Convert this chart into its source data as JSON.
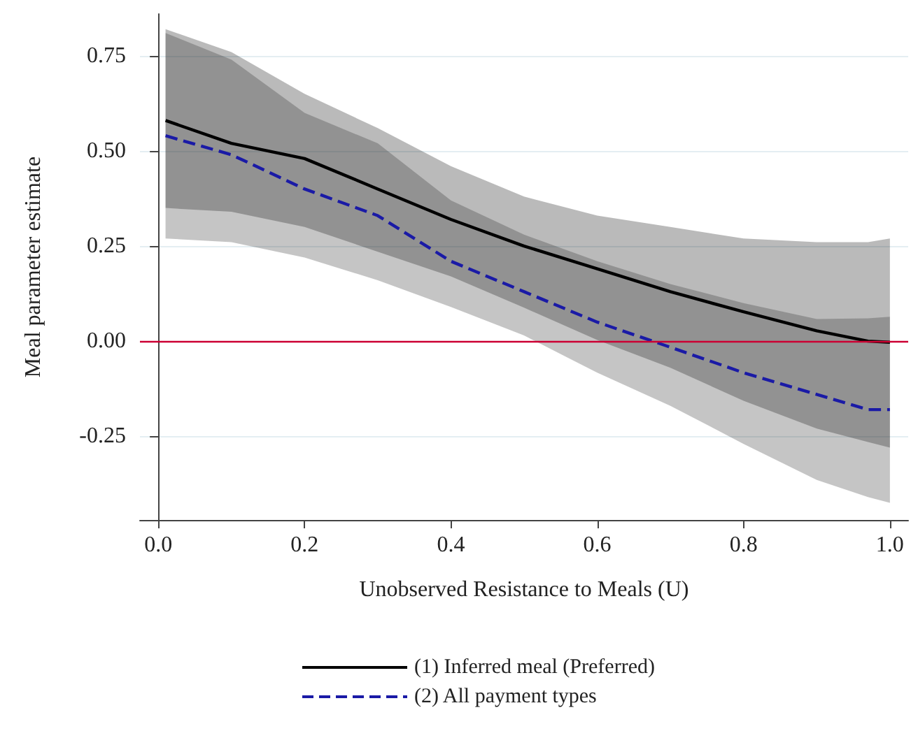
{
  "chart_data": {
    "type": "line",
    "xlabel": "Unobserved Resistance to Meals (U)",
    "ylabel": "Meal parameter estimate",
    "x": [
      0.01,
      0.1,
      0.2,
      0.3,
      0.4,
      0.5,
      0.6,
      0.7,
      0.8,
      0.9,
      0.97,
      1.0
    ],
    "series": [
      {
        "name": "(1) Inferred meal (Preferred)",
        "color": "#000000",
        "line_style": "solid",
        "values": [
          0.58,
          0.52,
          0.48,
          0.4,
          0.32,
          0.25,
          0.19,
          0.13,
          0.077,
          0.027,
          0.0,
          -0.003
        ],
        "lower": [
          0.35,
          0.34,
          0.3,
          0.235,
          0.17,
          0.088,
          0.003,
          -0.07,
          -0.157,
          -0.23,
          -0.265,
          -0.28
        ],
        "upper": [
          0.82,
          0.76,
          0.65,
          0.56,
          0.46,
          0.38,
          0.33,
          0.3,
          0.27,
          0.26,
          0.26,
          0.27
        ]
      },
      {
        "name": "(2) All payment types",
        "color": "#1a1aa6",
        "line_style": "dashed",
        "values": [
          0.54,
          0.49,
          0.4,
          0.33,
          0.21,
          0.13,
          0.05,
          -0.016,
          -0.083,
          -0.14,
          -0.18,
          -0.18
        ],
        "lower": [
          0.27,
          0.26,
          0.22,
          0.16,
          0.09,
          0.015,
          -0.083,
          -0.17,
          -0.27,
          -0.365,
          -0.41,
          -0.425
        ],
        "upper": [
          0.81,
          0.74,
          0.6,
          0.52,
          0.37,
          0.28,
          0.21,
          0.15,
          0.1,
          0.058,
          0.06,
          0.064
        ]
      }
    ],
    "xlim": [
      -0.025,
      1.025
    ],
    "xticks": [
      {
        "value": 0,
        "label": "0.0"
      },
      {
        "value": 0.2,
        "label": "0.2"
      },
      {
        "value": 0.4,
        "label": "0.4"
      },
      {
        "value": 0.6,
        "label": "0.6"
      },
      {
        "value": 0.8,
        "label": "0.8"
      },
      {
        "value": 1,
        "label": "1.0"
      }
    ],
    "ylim": [
      -0.47,
      0.86
    ],
    "yticks": [
      {
        "value": -0.25,
        "label": "-0.25"
      },
      {
        "value": 0,
        "label": "0.00"
      },
      {
        "value": 0.25,
        "label": "0.25"
      },
      {
        "value": 0.5,
        "label": "0.50"
      },
      {
        "value": 0.75,
        "label": "0.75"
      }
    ],
    "ref_lines": [
      {
        "axis": "y",
        "value": 0,
        "color": "#cc0033"
      }
    ],
    "grid": "y",
    "legend": "bottom",
    "marker": "none"
  }
}
